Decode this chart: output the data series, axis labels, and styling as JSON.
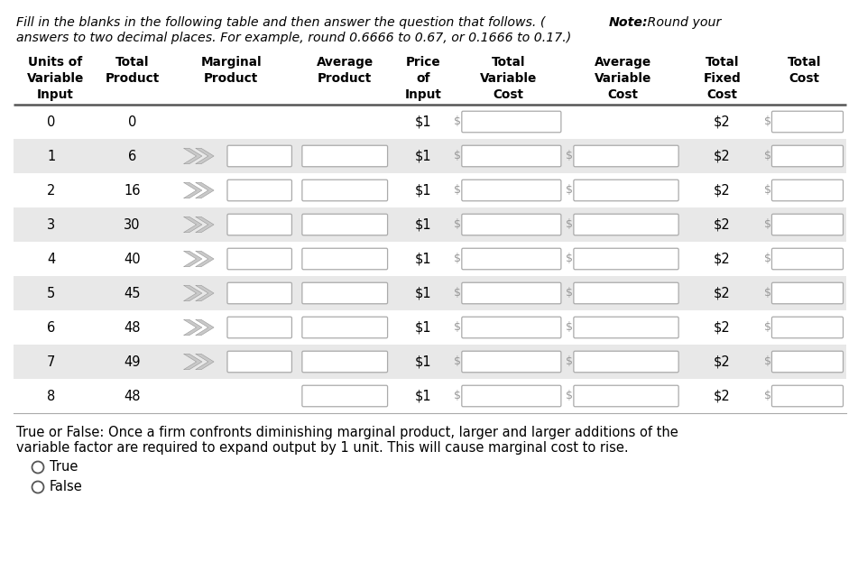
{
  "title_line1": "Fill in the blanks in the following table and then answer the question that follows. (",
  "title_bold": "Note:",
  "title_line1b": " Round your",
  "title_line2": "answers to two decimal places. For example, round 0.6666 to 0.67, or 0.1666 to 0.17.)",
  "title_italic": true,
  "col_headers": [
    [
      "Units of",
      "Variable",
      "Input"
    ],
    [
      "Total",
      "Product",
      ""
    ],
    [
      "Marginal",
      "Product",
      ""
    ],
    [
      "Average",
      "Product",
      ""
    ],
    [
      "Price",
      "of",
      "Input"
    ],
    [
      "Total",
      "Variable",
      "Cost"
    ],
    [
      "Average",
      "Variable",
      "Cost"
    ],
    [
      "Total",
      "Fixed",
      "Cost"
    ],
    [
      "Total",
      "Cost",
      ""
    ]
  ],
  "row_labels": [
    0,
    1,
    2,
    3,
    4,
    5,
    6,
    7,
    8
  ],
  "total_products": [
    0,
    6,
    16,
    30,
    40,
    45,
    48,
    49,
    48
  ],
  "true_false_text_line1": "True or False: Once a firm confronts diminishing marginal product, larger and larger additions of the",
  "true_false_text_line2": "variable factor are required to expand output by 1 unit. This will cause marginal cost to rise.",
  "bg_color": "#ffffff",
  "row_alt_color": "#e8e8e8",
  "header_text_color": "#000000",
  "data_text_color": "#000000",
  "input_box_fill": "#ffffff",
  "input_box_border": "#aaaaaa",
  "dollar_color": "#999999",
  "arrow_fill": "#c8c8c8",
  "arrow_edge": "#999999",
  "fixed_cost_text": "$2",
  "price_text": "$1",
  "header_line_color": "#888888",
  "col_widths_raw": [
    75,
    62,
    115,
    88,
    52,
    100,
    105,
    72,
    75
  ]
}
